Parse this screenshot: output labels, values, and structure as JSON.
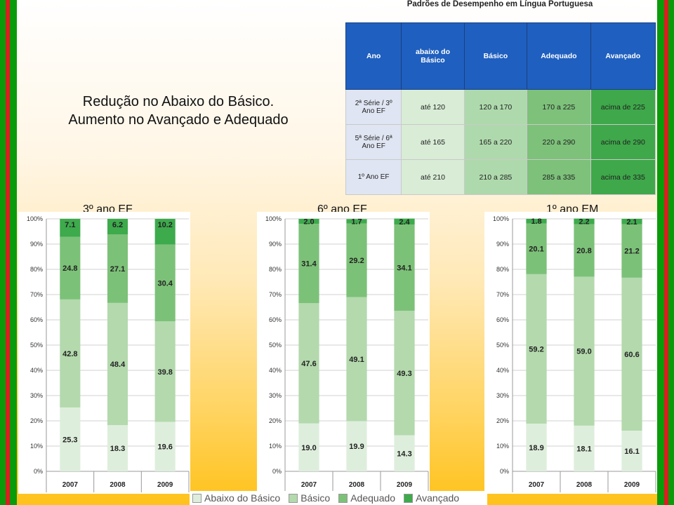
{
  "headline": {
    "line1": "Redução no Abaixo do Básico.",
    "line2": "Aumento no Avançado e Adequado"
  },
  "table": {
    "title": "Padrões de Desempenho em Língua Portuguesa",
    "headers": [
      "Ano",
      "abaixo do Básico",
      "Básico",
      "Adequado",
      "Avançado"
    ],
    "rows": [
      [
        "2ª Série / 3º Ano EF",
        "até 120",
        "120 a 170",
        "170 a 225",
        "acima de 225"
      ],
      [
        "5ª Série / 6ª Ano EF",
        "até 165",
        "165 a 220",
        "220 a 290",
        "acima de 290"
      ],
      [
        "1º Ano EF",
        "até 210",
        "210 a 285",
        "285 a 335",
        "acima de 335"
      ]
    ]
  },
  "colors": {
    "abaixo": "#deeedc",
    "basico": "#b3d9ad",
    "adequado": "#7cc178",
    "avancado": "#3daa4c"
  },
  "legend": [
    "Abaixo do Básico",
    "Básico",
    "Adequado",
    "Avançado"
  ],
  "chart_data": [
    {
      "type": "bar",
      "stacked": true,
      "title": "3º ano EF",
      "categories": [
        "2007",
        "2008",
        "2009"
      ],
      "ylim": [
        0,
        100
      ],
      "yticks": [
        "0%",
        "10%",
        "20%",
        "30%",
        "40%",
        "50%",
        "60%",
        "70%",
        "80%",
        "90%",
        "100%"
      ],
      "series": [
        {
          "name": "Abaixo do Básico",
          "values": [
            25.3,
            18.3,
            19.6
          ]
        },
        {
          "name": "Básico",
          "values": [
            42.8,
            48.4,
            39.8
          ]
        },
        {
          "name": "Adequado",
          "values": [
            24.8,
            27.1,
            30.4
          ]
        },
        {
          "name": "Avançado",
          "values": [
            7.1,
            6.2,
            10.2
          ]
        }
      ]
    },
    {
      "type": "bar",
      "stacked": true,
      "title": "6º ano EF",
      "categories": [
        "2007",
        "2008",
        "2009"
      ],
      "ylim": [
        0,
        100
      ],
      "yticks": [
        "0%",
        "10%",
        "20%",
        "30%",
        "40%",
        "50%",
        "60%",
        "70%",
        "80%",
        "90%",
        "100%"
      ],
      "series": [
        {
          "name": "Abaixo do Básico",
          "values": [
            19.0,
            19.9,
            14.3
          ]
        },
        {
          "name": "Básico",
          "values": [
            47.6,
            49.1,
            49.3
          ]
        },
        {
          "name": "Adequado",
          "values": [
            31.4,
            29.2,
            34.1
          ]
        },
        {
          "name": "Avançado",
          "values": [
            2.0,
            1.7,
            2.4
          ]
        }
      ]
    },
    {
      "type": "bar",
      "stacked": true,
      "title": "1º ano EM",
      "categories": [
        "2007",
        "2008",
        "2009"
      ],
      "ylim": [
        0,
        100
      ],
      "yticks": [
        "0%",
        "10%",
        "20%",
        "30%",
        "40%",
        "50%",
        "60%",
        "70%",
        "80%",
        "90%",
        "100%"
      ],
      "series": [
        {
          "name": "Abaixo do Básico",
          "values": [
            18.9,
            18.1,
            16.1
          ]
        },
        {
          "name": "Básico",
          "values": [
            59.2,
            59.0,
            60.6
          ]
        },
        {
          "name": "Adequado",
          "values": [
            20.1,
            20.8,
            21.2
          ]
        },
        {
          "name": "Avançado",
          "values": [
            1.8,
            2.2,
            2.1
          ]
        }
      ]
    }
  ]
}
